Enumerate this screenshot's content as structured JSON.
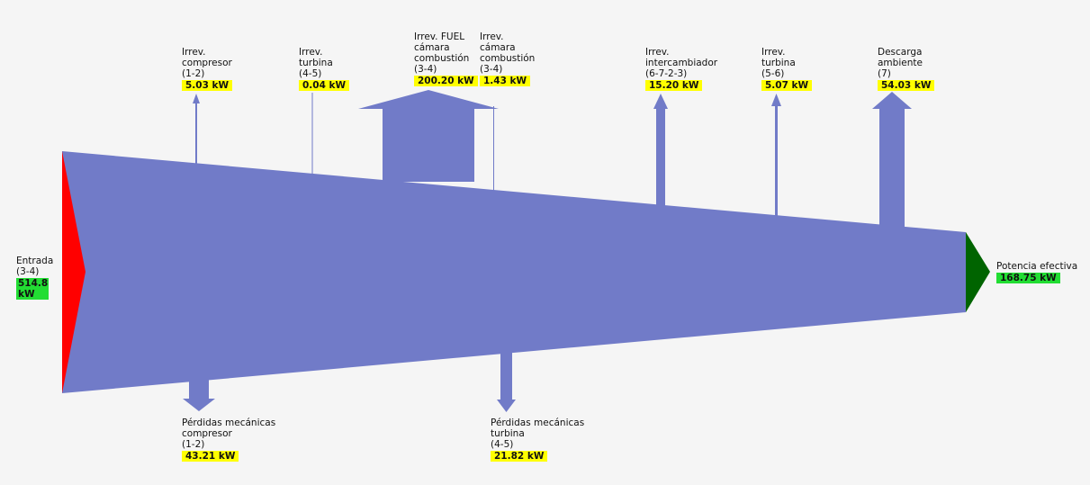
{
  "colors": {
    "flow": "#717bc8",
    "input": "#ff0000",
    "output": "#006400",
    "value_highlight": "#ffff00",
    "io_highlight": "#22dd33"
  },
  "input": {
    "lines": [
      "Entrada",
      "(3-4)"
    ],
    "value": "514.8 kW"
  },
  "output": {
    "lines": [
      "Potencia efectiva"
    ],
    "value": "168.75 kW"
  },
  "top_flows": [
    {
      "id": "irrev-compresor",
      "lines": [
        "Irrev.",
        "compresor",
        "(1-2)"
      ],
      "value": "5.03 kW"
    },
    {
      "id": "irrev-turbina-45",
      "lines": [
        "Irrev.",
        "turbina",
        "(4-5)"
      ],
      "value": "0.04 kW"
    },
    {
      "id": "irrev-fuel",
      "lines": [
        "Irrev. FUEL",
        "cámara",
        "combustión",
        "(3-4)"
      ],
      "value": "200.20 kW"
    },
    {
      "id": "irrev-camara",
      "lines": [
        "Irrev.",
        "cámara",
        "combustión",
        "(3-4)"
      ],
      "value": "1.43 kW"
    },
    {
      "id": "irrev-intercambiador",
      "lines": [
        "Irrev.",
        "intercambiador",
        "(6-7-2-3)"
      ],
      "value": "15.20 kW"
    },
    {
      "id": "irrev-turbina-56",
      "lines": [
        "Irrev.",
        "turbina",
        "(5-6)"
      ],
      "value": "5.07 kW"
    },
    {
      "id": "descarga-ambiente",
      "lines": [
        "Descarga",
        "ambiente",
        "(7)"
      ],
      "value": "54.03 kW"
    }
  ],
  "bottom_flows": [
    {
      "id": "perdidas-compresor",
      "lines": [
        "Pérdidas mecánicas",
        "compresor",
        "(1-2)"
      ],
      "value": "43.21 kW"
    },
    {
      "id": "perdidas-turbina",
      "lines": [
        "Pérdidas mecánicas",
        "turbina",
        "(4-5)"
      ],
      "value": "21.82 kW"
    }
  ]
}
